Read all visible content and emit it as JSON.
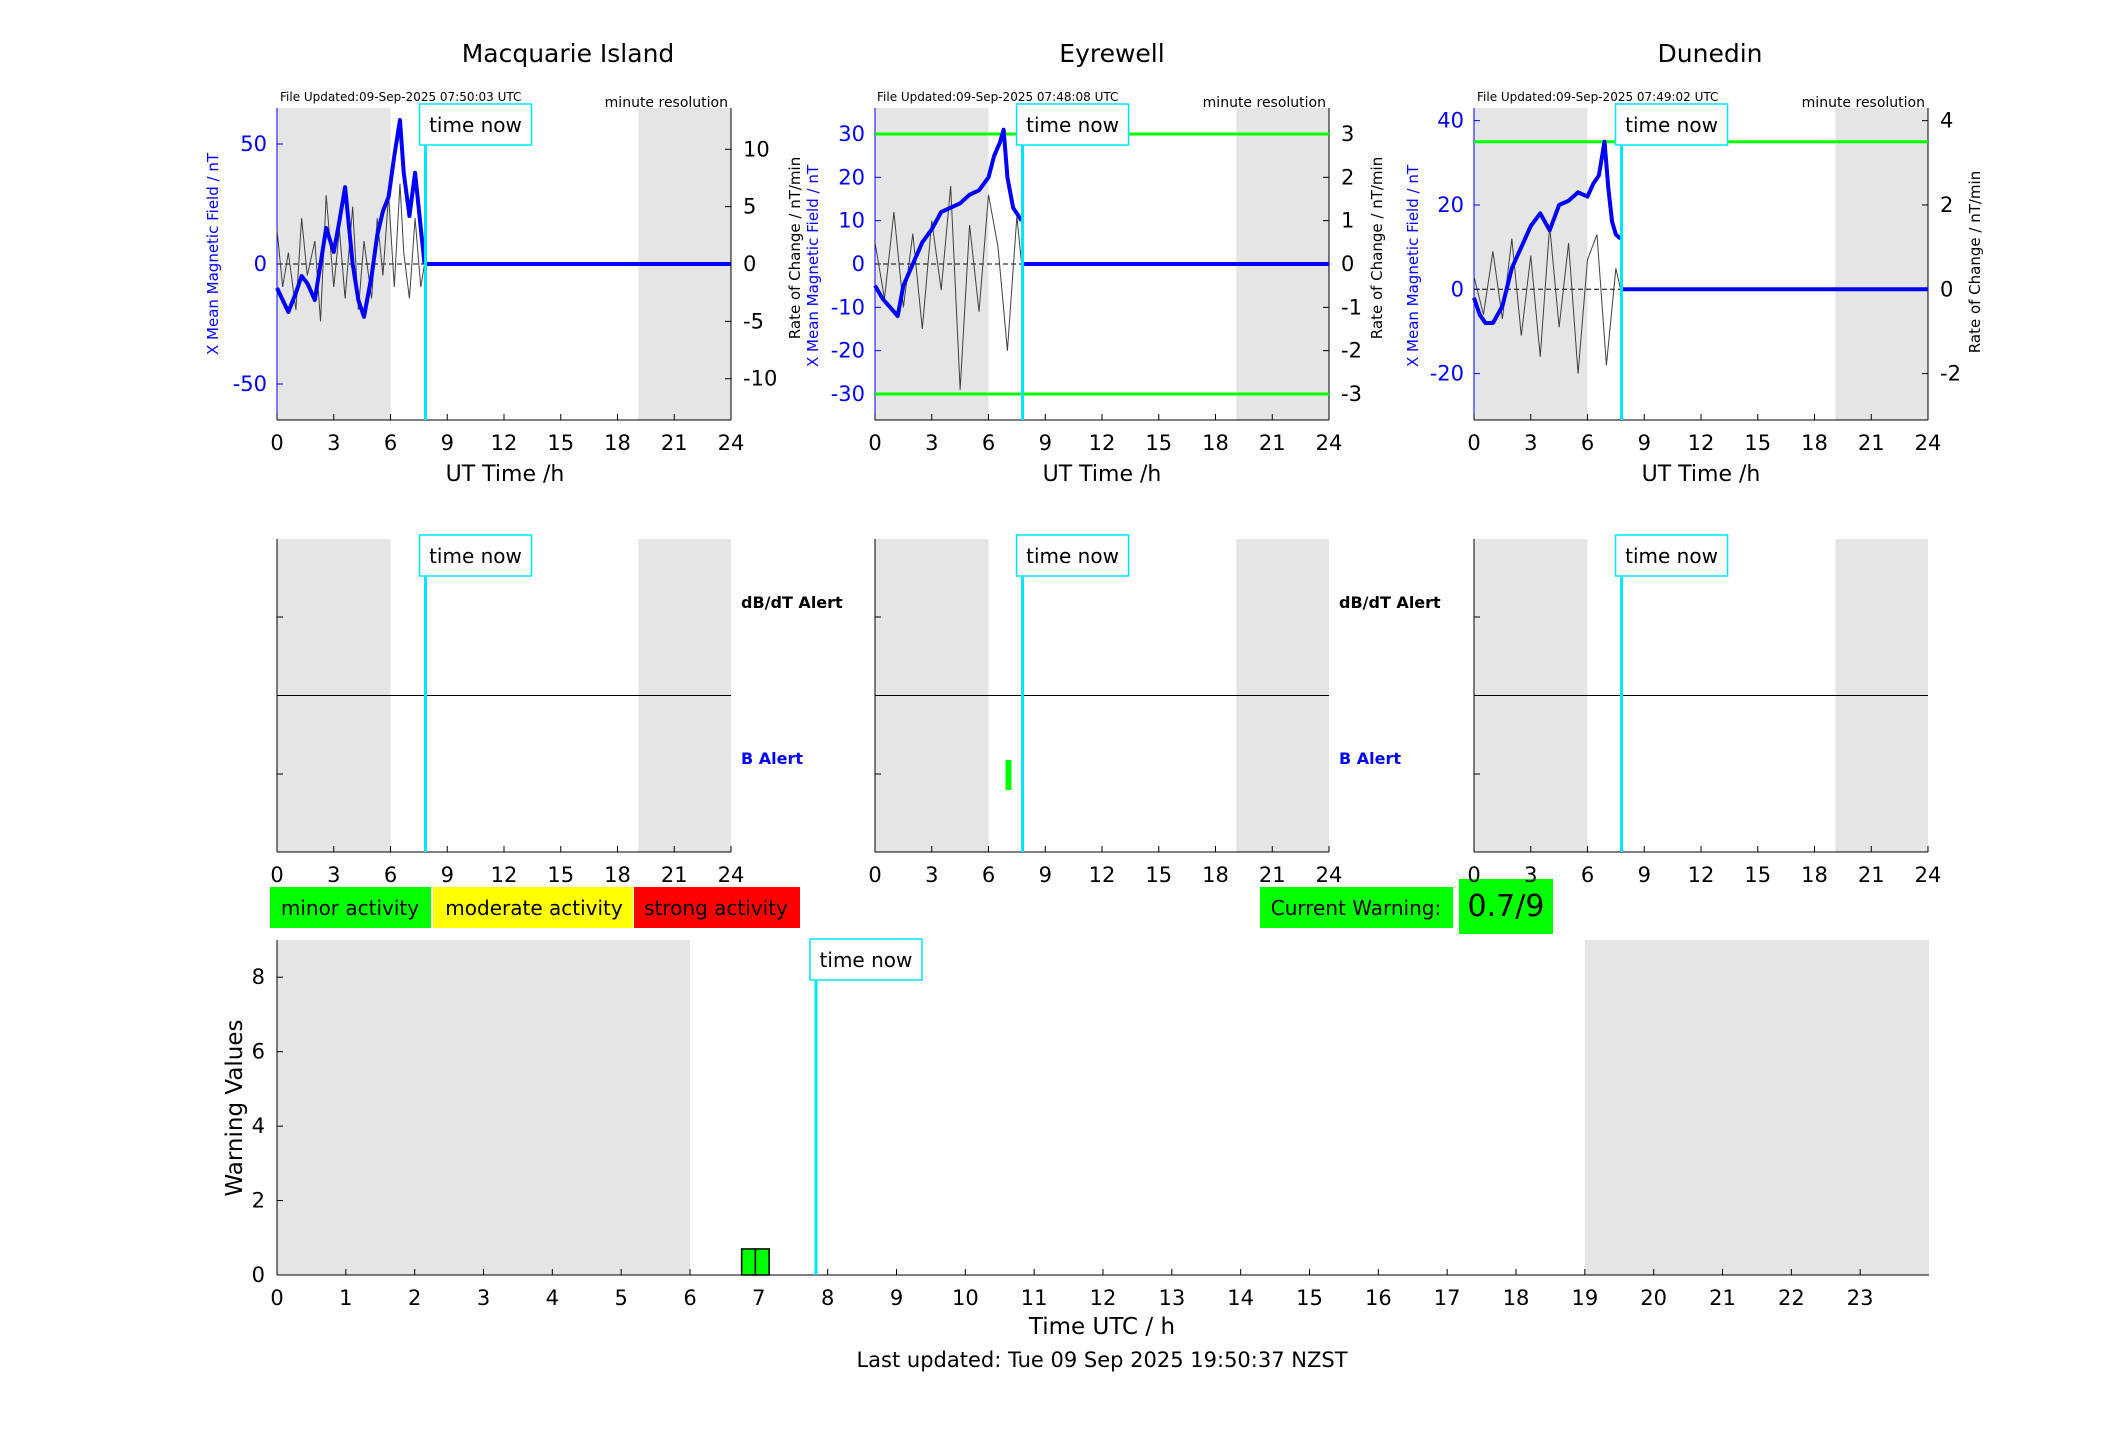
{
  "colors": {
    "night_shade": "#e5e5e5",
    "b_field": "#0000ff",
    "rate": "#404040",
    "threshold": "#00ff00",
    "time_now": "#00e5ff",
    "minor": "#00ff00",
    "moderate": "#ffff00",
    "strong": "#ff0000",
    "warning_bar": "#00ff00"
  },
  "icons": [
    "time-now-marker"
  ],
  "stations": [
    {
      "name": "Macquarie Island",
      "file_updated": "File Updated:09-Sep-2025 07:50:03 UTC",
      "resolution": "minute resolution",
      "left_axis_label": "X Mean Magnetic Field / nT",
      "right_axis_label": "",
      "left_ticks": [
        "50",
        "0",
        "-50"
      ],
      "right_ticks": [
        "10",
        "5",
        "0",
        "-5",
        "-10"
      ],
      "x_axis_label": "UT Time /h",
      "x_ticks": [
        "0",
        "3",
        "6",
        "9",
        "12",
        "15",
        "18",
        "21",
        "24"
      ],
      "time_now_label": "time now",
      "alert_time_now_label": "time now",
      "dbdt_alert_label": "dB/dT Alert",
      "b_alert_label": "B Alert",
      "alert_x_ticks": [
        "0",
        "3",
        "6",
        "9",
        "12",
        "15",
        "18",
        "21",
        "24"
      ]
    },
    {
      "name": "Eyrewell",
      "file_updated": "File Updated:09-Sep-2025 07:48:08 UTC",
      "resolution": "minute resolution",
      "left_axis_label": "X Mean Magnetic Field / nT",
      "right_axis_label": "Rate of Change / nT/min",
      "left_ticks": [
        "30",
        "20",
        "10",
        "0",
        "-10",
        "-20",
        "-30"
      ],
      "right_ticks": [
        "3",
        "2",
        "1",
        "0",
        "-1",
        "-2",
        "-3"
      ],
      "x_axis_label": "UT Time /h",
      "x_ticks": [
        "0",
        "3",
        "6",
        "9",
        "12",
        "15",
        "18",
        "21",
        "24"
      ],
      "time_now_label": "time now",
      "alert_time_now_label": "time now",
      "dbdt_alert_label": "dB/dT Alert",
      "b_alert_label": "B Alert",
      "alert_x_ticks": [
        "0",
        "3",
        "6",
        "9",
        "12",
        "15",
        "18",
        "21",
        "24"
      ]
    },
    {
      "name": "Dunedin",
      "file_updated": "File Updated:09-Sep-2025 07:49:02 UTC",
      "resolution": "minute resolution",
      "left_axis_label": "X Mean Magnetic Field / nT",
      "right_axis_label": "Rate of Change / nT/min",
      "left_ticks": [
        "40",
        "20",
        "0",
        "-20"
      ],
      "right_ticks": [
        "4",
        "2",
        "0",
        "-2"
      ],
      "x_axis_label": "UT Time /h",
      "x_ticks": [
        "0",
        "3",
        "6",
        "9",
        "12",
        "15",
        "18",
        "21",
        "24"
      ],
      "time_now_label": "time now",
      "alert_time_now_label": "time now",
      "dbdt_alert_label": "",
      "b_alert_label": "",
      "alert_x_ticks": [
        "0",
        "3",
        "6",
        "9",
        "12",
        "15",
        "18",
        "21",
        "24"
      ]
    }
  ],
  "legend": {
    "minor": "minor activity",
    "moderate": "moderate activity",
    "strong": "strong activity"
  },
  "current_warning": {
    "label": "Current Warning:",
    "value": "0.7/9"
  },
  "warning_panel": {
    "ylabel": "Warning Values",
    "xlabel": "Time UTC / h",
    "x_ticks": [
      "0",
      "1",
      "2",
      "3",
      "4",
      "5",
      "6",
      "7",
      "8",
      "9",
      "10",
      "11",
      "12",
      "13",
      "14",
      "15",
      "16",
      "17",
      "18",
      "19",
      "20",
      "21",
      "22",
      "23"
    ],
    "y_ticks": [
      "0",
      "2",
      "4",
      "6",
      "8"
    ],
    "time_now_label": "time now"
  },
  "last_updated": "Last updated: Tue 09 Sep 2025 19:50:37 NZST",
  "chart_data": [
    {
      "type": "line",
      "title": "Macquarie Island",
      "xlabel": "UT Time /h",
      "ylabel": "X Mean Magnetic Field / nT",
      "xlim": [
        0,
        24
      ],
      "ylim": [
        -65,
        65
      ],
      "y2lim": [
        -13.6,
        13.6
      ],
      "night_shading": [
        [
          0,
          6
        ],
        [
          19.1,
          24
        ]
      ],
      "time_now": 7.85,
      "series": [
        {
          "name": "X Mean Magnetic Field / nT",
          "x": [
            0,
            0.3,
            0.6,
            1,
            1.3,
            1.6,
            2,
            2.3,
            2.6,
            3,
            3.3,
            3.6,
            4,
            4.3,
            4.6,
            5,
            5.3,
            5.6,
            5.9,
            6.2,
            6.5,
            6.7,
            7,
            7.3,
            7.6,
            7.8
          ],
          "y": [
            -10,
            -15,
            -20,
            -12,
            -5,
            -8,
            -15,
            0,
            15,
            5,
            18,
            32,
            0,
            -15,
            -22,
            -5,
            12,
            22,
            28,
            45,
            60,
            38,
            20,
            38,
            15,
            0
          ]
        },
        {
          "name": "Rate of Change / nT/min",
          "axis": "right",
          "x": [
            0,
            0.3,
            0.6,
            1,
            1.3,
            1.6,
            2,
            2.3,
            2.6,
            3,
            3.3,
            3.6,
            4,
            4.3,
            4.6,
            5,
            5.3,
            5.6,
            5.9,
            6.2,
            6.5,
            6.7,
            7,
            7.3,
            7.6,
            7.8
          ],
          "y": [
            3,
            -2,
            1,
            -4,
            4,
            -1,
            2,
            -5,
            6,
            -2,
            3,
            -3,
            5,
            -4,
            2,
            -3,
            4,
            -1,
            6,
            -2,
            7,
            1,
            -3,
            4,
            -2,
            0
          ]
        }
      ]
    },
    {
      "type": "line",
      "title": "Eyrewell",
      "xlabel": "UT Time /h",
      "ylabel": "X Mean Magnetic Field / nT",
      "y2label": "Rate of Change / nT/min",
      "xlim": [
        0,
        24
      ],
      "ylim": [
        -36,
        36
      ],
      "y2lim": [
        -3.6,
        3.6
      ],
      "night_shading": [
        [
          0,
          6
        ],
        [
          19.1,
          24
        ]
      ],
      "time_now": 7.8,
      "thresholds_right_axis": [
        3,
        -3
      ],
      "series": [
        {
          "name": "X Mean Magnetic Field / nT",
          "x": [
            0,
            0.4,
            0.8,
            1.2,
            1.5,
            2,
            2.5,
            3,
            3.5,
            4,
            4.5,
            5,
            5.5,
            6,
            6.3,
            6.6,
            6.8,
            7,
            7.3,
            7.6,
            7.75
          ],
          "y": [
            -5,
            -8,
            -10,
            -12,
            -5,
            0,
            5,
            8,
            12,
            13,
            14,
            16,
            17,
            20,
            25,
            28,
            31,
            20,
            13,
            11,
            10
          ]
        },
        {
          "name": "Rate of Change / nT/min",
          "axis": "right",
          "x": [
            0,
            0.5,
            1,
            1.5,
            2,
            2.5,
            3,
            3.5,
            4,
            4.5,
            5,
            5.5,
            6,
            6.5,
            7,
            7.5,
            7.75
          ],
          "y": [
            0.5,
            -0.8,
            1.2,
            -1,
            0.7,
            -1.5,
            1,
            -0.6,
            1.8,
            -2.9,
            0.9,
            -1.1,
            1.6,
            0.4,
            -2,
            1.1,
            0
          ]
        }
      ]
    },
    {
      "type": "line",
      "title": "Dunedin",
      "xlabel": "UT Time /h",
      "ylabel": "X Mean Magnetic Field / nT",
      "y2label": "Rate of Change / nT/min",
      "xlim": [
        0,
        24
      ],
      "ylim": [
        -31,
        43
      ],
      "y2lim": [
        -3.1,
        4.3
      ],
      "night_shading": [
        [
          0,
          6
        ],
        [
          19.1,
          24
        ]
      ],
      "time_now": 7.8,
      "thresholds_left_axis": [
        35
      ],
      "series": [
        {
          "name": "X Mean Magnetic Field / nT",
          "x": [
            0,
            0.3,
            0.6,
            1,
            1.5,
            2,
            2.5,
            3,
            3.5,
            4,
            4.5,
            5,
            5.5,
            6,
            6.3,
            6.6,
            6.9,
            7.1,
            7.3,
            7.5,
            7.75
          ],
          "y": [
            -2,
            -6,
            -8,
            -8,
            -4,
            5,
            10,
            15,
            18,
            14,
            20,
            21,
            23,
            22,
            25,
            27,
            35,
            24,
            16,
            13,
            12
          ]
        },
        {
          "name": "Rate of Change / nT/min",
          "axis": "right",
          "x": [
            0,
            0.5,
            1,
            1.5,
            2,
            2.5,
            3,
            3.5,
            4,
            4.5,
            5,
            5.5,
            6,
            6.5,
            7,
            7.5,
            7.75
          ],
          "y": [
            0.3,
            -0.6,
            0.9,
            -0.7,
            1.2,
            -1.1,
            0.8,
            -1.6,
            1.5,
            -0.9,
            1.1,
            -2,
            0.7,
            1.3,
            -1.8,
            0.5,
            0
          ]
        }
      ]
    },
    {
      "type": "bar",
      "xlabel": "Time UTC / h",
      "ylabel": "Warning Values",
      "xlim": [
        0,
        24
      ],
      "ylim": [
        0,
        9
      ],
      "night_shading": [
        [
          0,
          6
        ],
        [
          19,
          24
        ]
      ],
      "time_now": 7.83,
      "categories": [
        "6.85",
        "7.05"
      ],
      "values": [
        0.7,
        0.7
      ]
    }
  ]
}
